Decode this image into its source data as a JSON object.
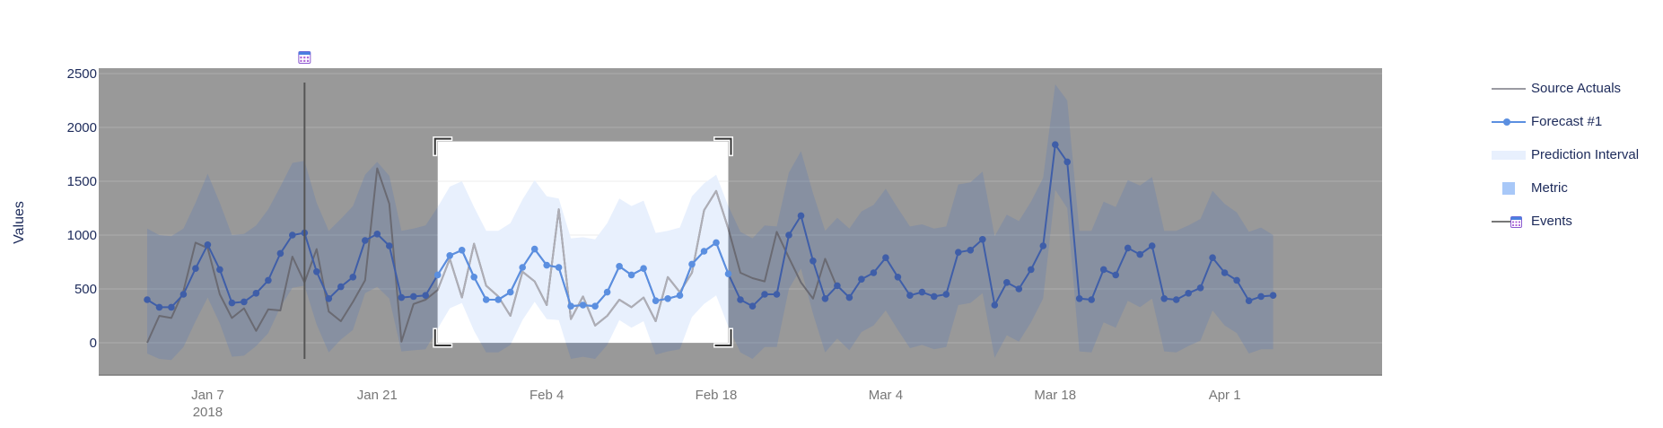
{
  "chart_data": {
    "type": "line",
    "ylabel": "Values",
    "ylim": [
      -300,
      2550
    ],
    "yticks": [
      0,
      500,
      1000,
      1500,
      2000,
      2500
    ],
    "xlim": [
      "2017-12-29",
      "2018-04-14"
    ],
    "xticks": [
      {
        "date": "2018-01-07",
        "label": "Jan 7",
        "sublabel": "2018"
      },
      {
        "date": "2018-01-21",
        "label": "Jan 21",
        "sublabel": ""
      },
      {
        "date": "2018-02-04",
        "label": "Feb 4",
        "sublabel": ""
      },
      {
        "date": "2018-02-18",
        "label": "Feb 18",
        "sublabel": ""
      },
      {
        "date": "2018-03-04",
        "label": "Mar 4",
        "sublabel": ""
      },
      {
        "date": "2018-03-18",
        "label": "Mar 18",
        "sublabel": ""
      },
      {
        "date": "2018-04-01",
        "label": "Apr 1",
        "sublabel": ""
      }
    ],
    "grid": true,
    "legend_position": "right",
    "selection": {
      "start": "2018-01-26",
      "end": "2018-02-19"
    },
    "event": {
      "date": "2018-01-15",
      "icon": "calendar-icon"
    },
    "colors": {
      "source": "#7d7d85",
      "forecast": "#5b8fe0",
      "interval": "#e8f0fd",
      "metric": "#a8c8f8",
      "event": "#555555",
      "plot_bg": "#999999",
      "grid": "#adadad",
      "axis_text": "#1c2a5a",
      "tick_text": "#777777"
    },
    "series": [
      {
        "name": "Source Actuals",
        "kind": "line",
        "x": [
          "2018-01-02",
          "2018-01-03",
          "2018-01-04",
          "2018-01-05",
          "2018-01-06",
          "2018-01-07",
          "2018-01-08",
          "2018-01-09",
          "2018-01-10",
          "2018-01-11",
          "2018-01-12",
          "2018-01-13",
          "2018-01-14",
          "2018-01-15",
          "2018-01-16",
          "2018-01-17",
          "2018-01-18",
          "2018-01-19",
          "2018-01-20",
          "2018-01-21",
          "2018-01-22",
          "2018-01-23",
          "2018-01-24",
          "2018-01-25",
          "2018-01-26",
          "2018-01-27",
          "2018-01-28",
          "2018-01-29",
          "2018-01-30",
          "2018-01-31",
          "2018-02-01",
          "2018-02-02",
          "2018-02-03",
          "2018-02-04",
          "2018-02-05",
          "2018-02-06",
          "2018-02-07",
          "2018-02-08",
          "2018-02-09",
          "2018-02-10",
          "2018-02-11",
          "2018-02-12",
          "2018-02-13",
          "2018-02-14",
          "2018-02-15",
          "2018-02-16",
          "2018-02-17",
          "2018-02-18",
          "2018-02-19",
          "2018-02-20",
          "2018-02-21",
          "2018-02-22",
          "2018-02-23",
          "2018-02-24",
          "2018-02-25",
          "2018-02-26",
          "2018-02-27",
          "2018-02-28"
        ],
        "values": [
          0,
          250,
          230,
          480,
          930,
          880,
          450,
          230,
          320,
          110,
          310,
          300,
          800,
          560,
          870,
          290,
          200,
          380,
          580,
          1620,
          1290,
          10,
          360,
          400,
          490,
          780,
          420,
          920,
          530,
          430,
          250,
          660,
          570,
          350,
          1240,
          220,
          430,
          160,
          250,
          400,
          330,
          420,
          200,
          610,
          470,
          650,
          1230,
          1410,
          1060,
          650,
          600,
          570,
          1030,
          790,
          560,
          410,
          780,
          510
        ]
      },
      {
        "name": "Forecast #1",
        "kind": "line+markers",
        "x": [
          "2018-01-02",
          "2018-01-03",
          "2018-01-04",
          "2018-01-05",
          "2018-01-06",
          "2018-01-07",
          "2018-01-08",
          "2018-01-09",
          "2018-01-10",
          "2018-01-11",
          "2018-01-12",
          "2018-01-13",
          "2018-01-14",
          "2018-01-15",
          "2018-01-16",
          "2018-01-17",
          "2018-01-18",
          "2018-01-19",
          "2018-01-20",
          "2018-01-21",
          "2018-01-22",
          "2018-01-23",
          "2018-01-24",
          "2018-01-25",
          "2018-01-26",
          "2018-01-27",
          "2018-01-28",
          "2018-01-29",
          "2018-01-30",
          "2018-01-31",
          "2018-02-01",
          "2018-02-02",
          "2018-02-03",
          "2018-02-04",
          "2018-02-05",
          "2018-02-06",
          "2018-02-07",
          "2018-02-08",
          "2018-02-09",
          "2018-02-10",
          "2018-02-11",
          "2018-02-12",
          "2018-02-13",
          "2018-02-14",
          "2018-02-15",
          "2018-02-16",
          "2018-02-17",
          "2018-02-18",
          "2018-02-19",
          "2018-02-20",
          "2018-02-21",
          "2018-02-22",
          "2018-02-23",
          "2018-02-24",
          "2018-02-25",
          "2018-02-26",
          "2018-02-27",
          "2018-02-28",
          "2018-03-01",
          "2018-03-02",
          "2018-03-03",
          "2018-03-04",
          "2018-03-05",
          "2018-03-06",
          "2018-03-07",
          "2018-03-08",
          "2018-03-09",
          "2018-03-10",
          "2018-03-11",
          "2018-03-12",
          "2018-03-13",
          "2018-03-14",
          "2018-03-15",
          "2018-03-16",
          "2018-03-17",
          "2018-03-18",
          "2018-03-19",
          "2018-03-20",
          "2018-03-21",
          "2018-03-22",
          "2018-03-23",
          "2018-03-24",
          "2018-03-25",
          "2018-03-26",
          "2018-03-27",
          "2018-03-28",
          "2018-03-29",
          "2018-03-30",
          "2018-03-31",
          "2018-04-01",
          "2018-04-02",
          "2018-04-03",
          "2018-04-04",
          "2018-04-05"
        ],
        "values": [
          400,
          330,
          330,
          450,
          690,
          910,
          680,
          370,
          380,
          460,
          580,
          830,
          1000,
          1020,
          660,
          410,
          520,
          610,
          950,
          1010,
          900,
          420,
          430,
          440,
          630,
          810,
          860,
          610,
          400,
          400,
          470,
          700,
          870,
          720,
          700,
          340,
          350,
          340,
          470,
          710,
          630,
          690,
          390,
          410,
          440,
          730,
          850,
          930,
          640,
          400,
          340,
          450,
          450,
          1000,
          1180,
          760,
          410,
          530,
          420,
          590,
          650,
          790,
          610,
          440,
          470,
          430,
          450,
          840,
          860,
          960,
          350,
          560,
          500,
          680,
          900,
          1840,
          1680,
          410,
          400,
          680,
          630,
          880,
          820,
          900,
          410,
          400,
          460,
          510,
          790,
          650,
          580,
          390,
          430,
          440
        ]
      },
      {
        "name": "Prediction Interval",
        "kind": "band",
        "x": [
          "2018-01-02",
          "2018-01-03",
          "2018-01-04",
          "2018-01-05",
          "2018-01-06",
          "2018-01-07",
          "2018-01-08",
          "2018-01-09",
          "2018-01-10",
          "2018-01-11",
          "2018-01-12",
          "2018-01-13",
          "2018-01-14",
          "2018-01-15",
          "2018-01-16",
          "2018-01-17",
          "2018-01-18",
          "2018-01-19",
          "2018-01-20",
          "2018-01-21",
          "2018-01-22",
          "2018-01-23",
          "2018-01-24",
          "2018-01-25",
          "2018-01-26",
          "2018-01-27",
          "2018-01-28",
          "2018-01-29",
          "2018-01-30",
          "2018-01-31",
          "2018-02-01",
          "2018-02-02",
          "2018-02-03",
          "2018-02-04",
          "2018-02-05",
          "2018-02-06",
          "2018-02-07",
          "2018-02-08",
          "2018-02-09",
          "2018-02-10",
          "2018-02-11",
          "2018-02-12",
          "2018-02-13",
          "2018-02-14",
          "2018-02-15",
          "2018-02-16",
          "2018-02-17",
          "2018-02-18",
          "2018-02-19",
          "2018-02-20",
          "2018-02-21",
          "2018-02-22",
          "2018-02-23",
          "2018-02-24",
          "2018-02-25",
          "2018-02-26",
          "2018-02-27",
          "2018-02-28",
          "2018-03-01",
          "2018-03-02",
          "2018-03-03",
          "2018-03-04",
          "2018-03-05",
          "2018-03-06",
          "2018-03-07",
          "2018-03-08",
          "2018-03-09",
          "2018-03-10",
          "2018-03-11",
          "2018-03-12",
          "2018-03-13",
          "2018-03-14",
          "2018-03-15",
          "2018-03-16",
          "2018-03-17",
          "2018-03-18",
          "2018-03-19",
          "2018-03-20",
          "2018-03-21",
          "2018-03-22",
          "2018-03-23",
          "2018-03-24",
          "2018-03-25",
          "2018-03-26",
          "2018-03-27",
          "2018-03-28",
          "2018-03-29",
          "2018-03-30",
          "2018-03-31",
          "2018-04-01",
          "2018-04-02",
          "2018-04-03",
          "2018-04-04",
          "2018-04-05"
        ],
        "upper": [
          1060,
          1000,
          990,
          1060,
          1300,
          1570,
          1300,
          1000,
          1010,
          1090,
          1240,
          1450,
          1670,
          1690,
          1300,
          1040,
          1150,
          1270,
          1560,
          1680,
          1550,
          1040,
          1060,
          1090,
          1260,
          1450,
          1500,
          1260,
          1040,
          1040,
          1110,
          1330,
          1510,
          1360,
          1340,
          970,
          980,
          960,
          1110,
          1340,
          1270,
          1320,
          1020,
          1040,
          1070,
          1360,
          1480,
          1560,
          1270,
          1030,
          970,
          1090,
          1080,
          1580,
          1780,
          1390,
          1040,
          1160,
          1060,
          1220,
          1280,
          1430,
          1250,
          1080,
          1100,
          1060,
          1080,
          1470,
          1490,
          1590,
          990,
          1190,
          1130,
          1310,
          1530,
          2400,
          2250,
          1040,
          1040,
          1310,
          1260,
          1510,
          1460,
          1540,
          1040,
          1040,
          1090,
          1150,
          1410,
          1290,
          1210,
          1030,
          1070,
          1000
        ],
        "lower": [
          -100,
          -150,
          -160,
          -40,
          200,
          420,
          180,
          -130,
          -120,
          -30,
          90,
          330,
          510,
          530,
          170,
          -90,
          30,
          120,
          460,
          520,
          410,
          -80,
          -70,
          -60,
          130,
          320,
          370,
          110,
          -90,
          -90,
          -20,
          210,
          380,
          220,
          210,
          -150,
          -130,
          -150,
          -20,
          210,
          140,
          200,
          -110,
          -80,
          -60,
          240,
          360,
          440,
          150,
          -90,
          -150,
          -40,
          -40,
          500,
          690,
          270,
          -90,
          40,
          -70,
          100,
          160,
          300,
          120,
          -50,
          -20,
          -60,
          -40,
          350,
          370,
          460,
          -140,
          70,
          10,
          190,
          410,
          1420,
          1250,
          -80,
          -90,
          190,
          140,
          390,
          330,
          410,
          -80,
          -90,
          -30,
          20,
          300,
          160,
          90,
          -100,
          -60,
          -60
        ]
      }
    ]
  },
  "legend": [
    {
      "label": "Source Actuals",
      "swatch": "line"
    },
    {
      "label": "Forecast #1",
      "swatch": "line-marker"
    },
    {
      "label": "Prediction Interval",
      "swatch": "band"
    },
    {
      "label": "Metric",
      "swatch": "square"
    },
    {
      "label": "Events",
      "swatch": "event"
    }
  ]
}
